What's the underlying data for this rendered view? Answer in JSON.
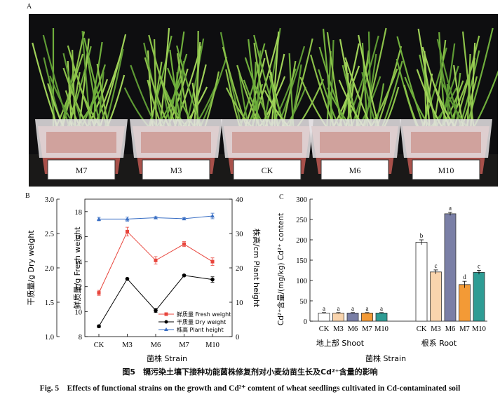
{
  "panels": {
    "a": "A",
    "b": "B",
    "c": "C"
  },
  "photo": {
    "pot_labels": [
      "M7",
      "M3",
      "CK",
      "M6",
      "M10"
    ]
  },
  "chart_data": [
    {
      "type": "line",
      "panel": "B",
      "categories": [
        "CK",
        "M3",
        "M6",
        "M7",
        "M10"
      ],
      "xlabel": "菌株 Strain",
      "axes": {
        "dry_weight": {
          "label": "干质量/g Dry weight",
          "lim": [
            1.0,
            3.0
          ],
          "ticks": [
            "1.0",
            "1.5",
            "2.0",
            "2.5",
            "3.0"
          ]
        },
        "fresh_weight": {
          "label": "鲜质量/g Fresh weight",
          "lim": [
            8,
            19
          ],
          "ticks": [
            "8",
            "10",
            "12",
            "14",
            "16",
            "18"
          ]
        },
        "plant_height": {
          "label": "株高/cm Plant height",
          "lim": [
            0,
            40
          ],
          "ticks": [
            "0",
            "10",
            "20",
            "30",
            "40"
          ]
        }
      },
      "series": [
        {
          "name": "鲜质量 Fresh weight",
          "axis": "fresh_weight",
          "color": "#e8453c",
          "marker": "square",
          "values": [
            11.5,
            16.4,
            14.1,
            15.4,
            14.0
          ],
          "errors": [
            0.2,
            0.35,
            0.3,
            0.2,
            0.3
          ]
        },
        {
          "name": "干质量 Dry weight",
          "axis": "dry_weight",
          "color": "#000000",
          "marker": "circle",
          "values": [
            1.15,
            1.84,
            1.38,
            1.89,
            1.83
          ],
          "errors": [
            0.02,
            0.01,
            0.03,
            0.01,
            0.04
          ]
        },
        {
          "name": "株高 Plant height",
          "axis": "plant_height",
          "color": "#3a6fc4",
          "marker": "triangle",
          "values": [
            34.2,
            34.2,
            34.6,
            34.3,
            35.1
          ],
          "errors": [
            0.5,
            0.6,
            0.3,
            0.3,
            0.8
          ]
        }
      ]
    },
    {
      "type": "bar",
      "panel": "C",
      "ylabel": "Cd²⁺含量/(mg/kg) Cd²⁺ content",
      "xlabel": "菌株 Strain",
      "ylim": [
        0,
        300
      ],
      "yticks": [
        "0",
        "50",
        "100",
        "150",
        "200",
        "250",
        "300"
      ],
      "groups": [
        {
          "label": "地上部 Shoot",
          "categories": [
            "CK",
            "M3",
            "M6",
            "M7",
            "M10"
          ],
          "values": [
            20,
            20,
            20,
            20,
            20
          ],
          "errors": [
            1,
            1,
            1,
            1,
            1
          ],
          "letters": [
            "a",
            "a",
            "a",
            "a",
            "a"
          ]
        },
        {
          "label": "根系 Root",
          "categories": [
            "CK",
            "M3",
            "M6",
            "M7",
            "M10"
          ],
          "values": [
            194,
            121,
            264,
            90,
            120
          ],
          "errors": [
            6,
            5,
            4,
            8,
            5
          ],
          "letters": [
            "b",
            "c",
            "a",
            "d",
            "c"
          ]
        }
      ],
      "colors": [
        "#ffffff",
        "#f9d4ad",
        "#7a7fa6",
        "#f39a36",
        "#2e9c94"
      ]
    }
  ],
  "caption": {
    "cn": "图5　镉污染土壤下接种功能菌株修复剂对小麦幼苗生长及Cd²⁺含量的影响",
    "en": "Fig. 5　Effects of functional strains on the growth and Cd²⁺ comtent of wheat seedlings cultivated in Cd-contaminated soil"
  }
}
